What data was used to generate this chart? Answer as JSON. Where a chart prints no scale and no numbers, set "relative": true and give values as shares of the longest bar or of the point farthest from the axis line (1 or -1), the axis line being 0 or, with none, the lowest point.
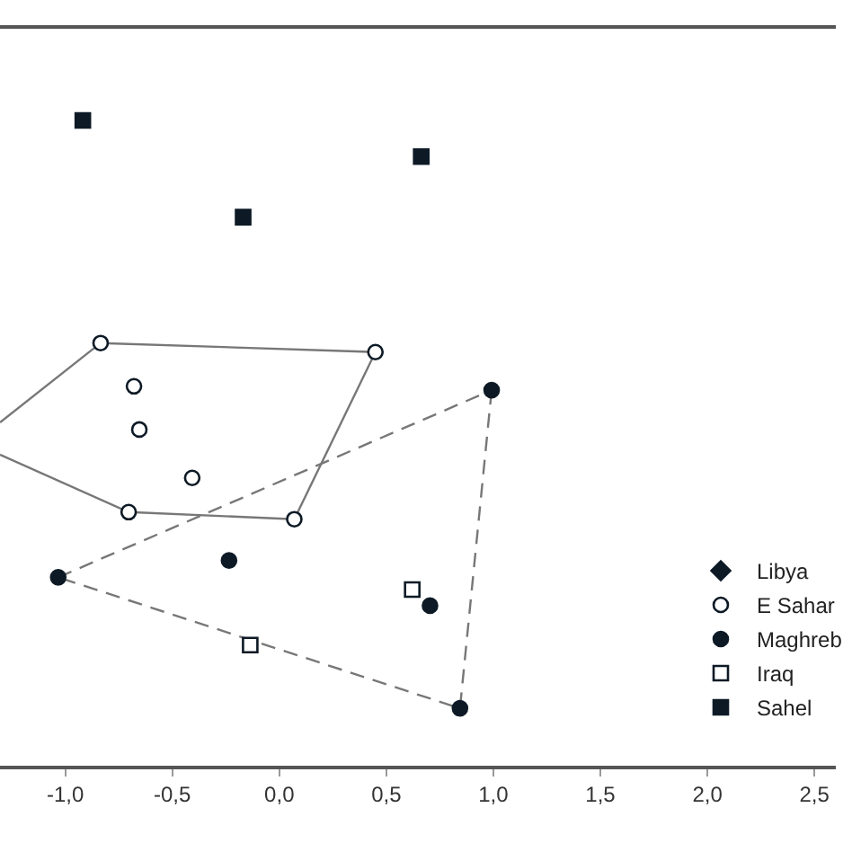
{
  "chart_data": {
    "type": "scatter",
    "relative": true,
    "xlim": [
      -1.305,
      2.6
    ],
    "xticks": [
      {
        "value": -1,
        "label": "-1,0"
      },
      {
        "value": -0.5,
        "label": "-0,5"
      },
      {
        "value": 0,
        "label": "0,0"
      },
      {
        "value": 0.5,
        "label": "0,5"
      },
      {
        "value": 1,
        "label": "1,0"
      },
      {
        "value": 1.5,
        "label": "1,5"
      },
      {
        "value": 2,
        "label": "2,0"
      },
      {
        "value": 2.5,
        "label": "2,5"
      }
    ],
    "grid": false,
    "legend": "bottom right",
    "tick_labels": "x",
    "series": [
      {
        "type": "line",
        "color": "#777777",
        "line_style": "solid",
        "marker": "none",
        "x": [
          -1.305,
          -0.835,
          0.449,
          0.07,
          -0.704,
          -1.305
        ],
        "values": [
          0.532,
          0.655,
          0.641,
          0.382,
          0.393,
          0.482
        ]
      },
      {
        "type": "line",
        "color": "#777777",
        "line_style": "dashed",
        "marker": "none",
        "x": [
          0.992,
          0.844,
          -1.033
        ],
        "values": [
          0.582,
          0.089,
          0.292
        ]
      },
      {
        "type": "line",
        "color": "#777777",
        "line_style": "dashed",
        "marker": "none",
        "x": [
          -1.033,
          0.992
        ],
        "values": [
          0.292,
          0.582
        ]
      },
      {
        "name": "Libya",
        "color": "#0d1a26",
        "marker": "diamond",
        "x": [
          null
        ],
        "values": [
          null
        ]
      },
      {
        "name": "E Sahar",
        "color": "#ffffff",
        "marker": "circle",
        "x": [
          -0.835,
          0.449,
          -0.679,
          -0.654,
          -0.407,
          -0.704,
          0.07
        ],
        "values": [
          0.655,
          0.641,
          0.588,
          0.521,
          0.446,
          0.393,
          0.382
        ]
      },
      {
        "name": "Maghreb",
        "color": "#0d1a26",
        "marker": "circle",
        "x": [
          -1.033,
          -0.235,
          0.992,
          0.704,
          0.844
        ],
        "values": [
          0.292,
          0.318,
          0.582,
          0.248,
          0.089
        ]
      },
      {
        "name": "Iraq",
        "color": "#ffffff",
        "marker": "square",
        "x": [
          0.621,
          -0.136
        ],
        "values": [
          0.273,
          0.187
        ]
      },
      {
        "name": "Sahel",
        "color": "#0d1a26",
        "marker": "square",
        "x": [
          -0.918,
          0.663,
          -0.169
        ],
        "values": [
          1.0,
          0.944,
          0.85
        ]
      }
    ]
  }
}
